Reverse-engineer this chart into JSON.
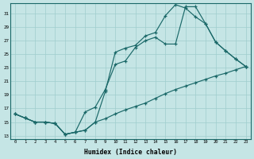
{
  "xlabel": "Humidex (Indice chaleur)",
  "bg_color": "#c5e5e5",
  "line_color": "#1a6868",
  "grid_color": "#9fcece",
  "xlim_min": -0.5,
  "xlim_max": 23.5,
  "ylim_min": 12.5,
  "ylim_max": 32.5,
  "yticks": [
    13,
    15,
    17,
    19,
    21,
    23,
    25,
    27,
    29,
    31
  ],
  "xticks": [
    0,
    1,
    2,
    3,
    4,
    5,
    6,
    7,
    8,
    9,
    10,
    11,
    12,
    13,
    14,
    15,
    16,
    17,
    18,
    19,
    20,
    21,
    22,
    23
  ],
  "curve1_x": [
    0,
    1,
    2,
    3,
    4,
    5,
    6,
    7,
    8,
    9,
    10,
    11,
    12,
    13,
    14,
    15,
    16,
    17,
    18,
    19,
    20,
    21,
    22,
    23
  ],
  "curve1_y": [
    16.2,
    15.6,
    15.0,
    15.0,
    14.8,
    13.2,
    13.5,
    13.8,
    15.0,
    19.5,
    25.3,
    25.9,
    26.3,
    27.7,
    28.2,
    30.7,
    32.3,
    31.8,
    30.5,
    29.5,
    26.8,
    25.5,
    24.3,
    23.2
  ],
  "curve2_x": [
    0,
    1,
    2,
    3,
    4,
    5,
    6,
    7,
    8,
    9,
    10,
    11,
    12,
    13,
    14,
    15,
    16,
    17,
    18,
    19,
    20,
    21,
    22,
    23
  ],
  "curve2_y": [
    16.2,
    15.6,
    15.0,
    15.0,
    14.8,
    13.2,
    13.5,
    16.5,
    17.2,
    19.8,
    23.5,
    24.0,
    26.0,
    27.0,
    27.5,
    26.5,
    26.5,
    32.0,
    32.0,
    29.5,
    26.8,
    25.5,
    24.3,
    23.2
  ],
  "curve3_x": [
    0,
    1,
    2,
    3,
    4,
    5,
    6,
    7,
    8,
    9,
    10,
    11,
    12,
    13,
    14,
    15,
    16,
    17,
    18,
    19,
    20,
    21,
    22,
    23
  ],
  "curve3_y": [
    16.2,
    15.6,
    15.0,
    15.0,
    14.8,
    13.2,
    13.5,
    13.8,
    15.0,
    15.5,
    16.2,
    16.8,
    17.3,
    17.8,
    18.5,
    19.2,
    19.8,
    20.3,
    20.8,
    21.3,
    21.8,
    22.2,
    22.7,
    23.2
  ]
}
